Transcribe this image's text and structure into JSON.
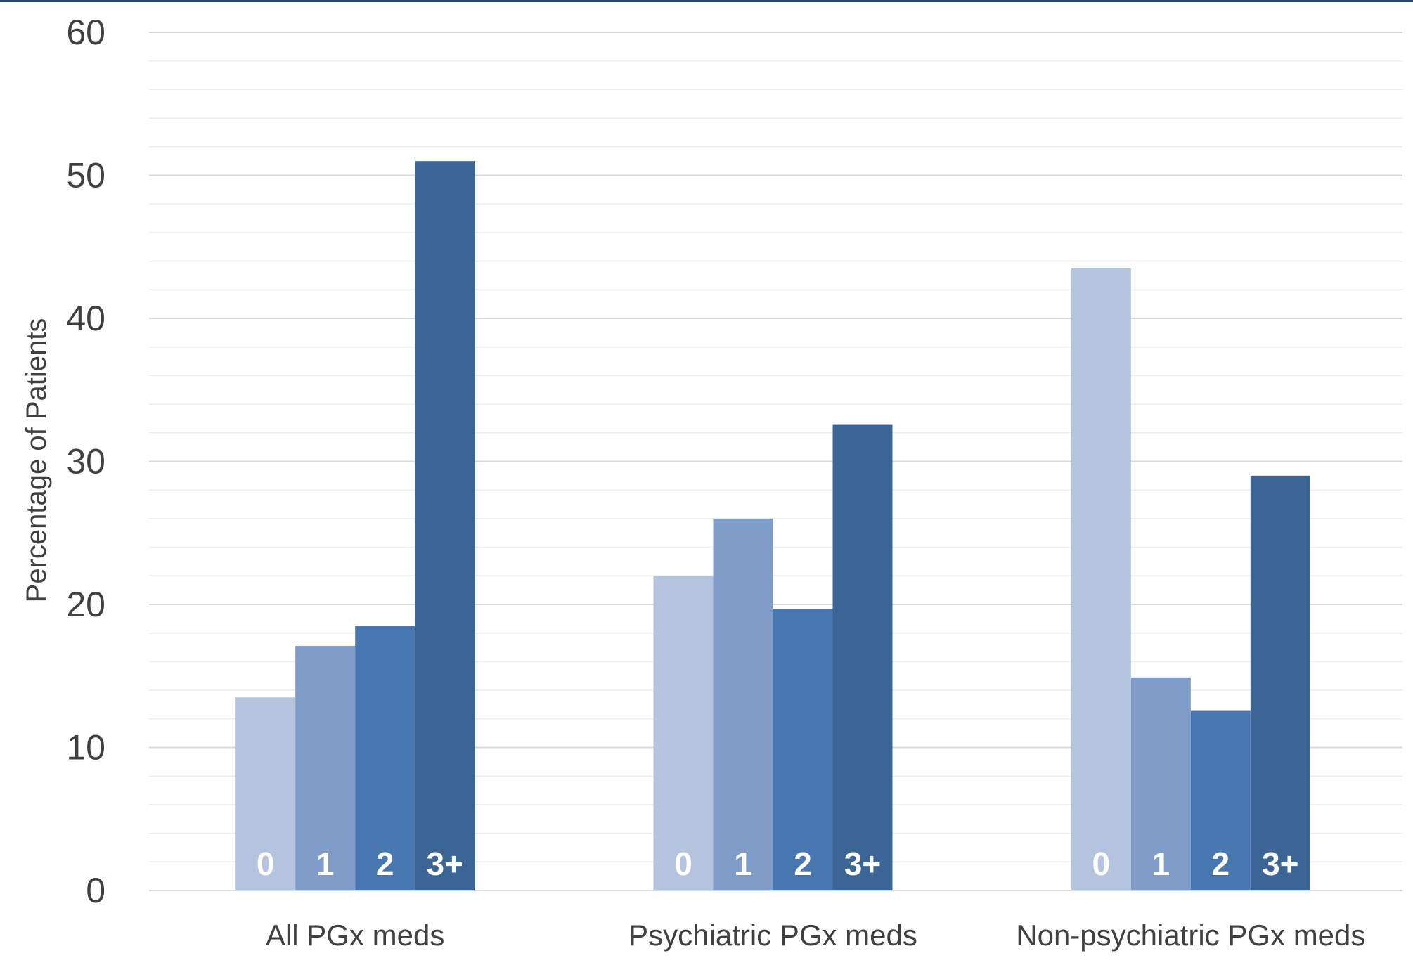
{
  "chart_data": {
    "type": "bar",
    "title": "",
    "xlabel": "",
    "ylabel": "Percentage of Patients",
    "ylim": [
      0,
      60
    ],
    "yticks": [
      0,
      10,
      20,
      30,
      40,
      50,
      60
    ],
    "grid": true,
    "legend": "none",
    "categories": [
      "All PGx meds",
      "Psychiatric PGx meds",
      "Non-psychiatric PGx meds"
    ],
    "series": [
      {
        "name": "0",
        "color": "#b4c3de",
        "values": [
          13.5,
          22.0,
          43.5
        ]
      },
      {
        "name": "1",
        "color": "#7f9bc7",
        "values": [
          17.1,
          26.0,
          14.9
        ]
      },
      {
        "name": "2",
        "color": "#4877b0",
        "values": [
          18.5,
          19.7,
          12.6
        ]
      },
      {
        "name": "3+",
        "color": "#3b6595",
        "values": [
          51.0,
          32.6,
          29.0
        ]
      }
    ]
  }
}
